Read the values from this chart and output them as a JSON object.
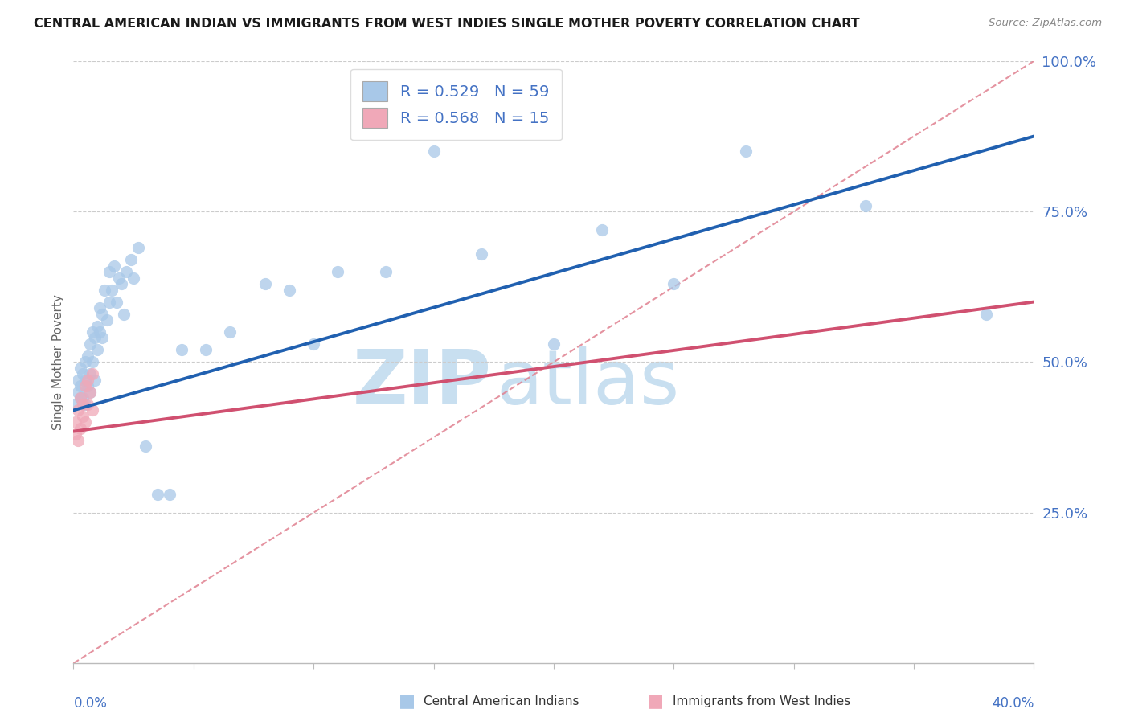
{
  "title": "CENTRAL AMERICAN INDIAN VS IMMIGRANTS FROM WEST INDIES SINGLE MOTHER POVERTY CORRELATION CHART",
  "source": "Source: ZipAtlas.com",
  "ylabel": "Single Mother Poverty",
  "legend_blue": "R = 0.529   N = 59",
  "legend_pink": "R = 0.568   N = 15",
  "legend_label_blue": "Central American Indians",
  "legend_label_pink": "Immigrants from West Indies",
  "blue_color": "#a8c8e8",
  "pink_color": "#f0a8b8",
  "trend_blue_color": "#2060b0",
  "trend_pink_color": "#d05070",
  "ref_line_color": "#e08090",
  "watermark_zip_color": "#c8dff0",
  "watermark_atlas_color": "#c8dff0",
  "text_color_blue": "#4472c4",
  "grid_color": "#cccccc",
  "blue_x": [
    0.001,
    0.002,
    0.002,
    0.003,
    0.003,
    0.003,
    0.004,
    0.004,
    0.005,
    0.005,
    0.005,
    0.006,
    0.006,
    0.007,
    0.007,
    0.007,
    0.008,
    0.008,
    0.009,
    0.009,
    0.01,
    0.01,
    0.011,
    0.011,
    0.012,
    0.012,
    0.013,
    0.014,
    0.015,
    0.015,
    0.016,
    0.017,
    0.018,
    0.019,
    0.02,
    0.021,
    0.022,
    0.024,
    0.025,
    0.027,
    0.03,
    0.035,
    0.04,
    0.045,
    0.055,
    0.065,
    0.08,
    0.09,
    0.1,
    0.11,
    0.13,
    0.15,
    0.17,
    0.2,
    0.22,
    0.25,
    0.28,
    0.33,
    0.38
  ],
  "blue_y": [
    0.43,
    0.45,
    0.47,
    0.44,
    0.46,
    0.49,
    0.44,
    0.48,
    0.43,
    0.47,
    0.5,
    0.46,
    0.51,
    0.45,
    0.48,
    0.53,
    0.5,
    0.55,
    0.47,
    0.54,
    0.52,
    0.56,
    0.55,
    0.59,
    0.54,
    0.58,
    0.62,
    0.57,
    0.6,
    0.65,
    0.62,
    0.66,
    0.6,
    0.64,
    0.63,
    0.58,
    0.65,
    0.67,
    0.64,
    0.69,
    0.36,
    0.28,
    0.28,
    0.52,
    0.52,
    0.55,
    0.63,
    0.62,
    0.53,
    0.65,
    0.65,
    0.85,
    0.68,
    0.53,
    0.72,
    0.63,
    0.85,
    0.76,
    0.58
  ],
  "pink_x": [
    0.001,
    0.001,
    0.002,
    0.002,
    0.003,
    0.003,
    0.004,
    0.004,
    0.005,
    0.005,
    0.006,
    0.006,
    0.007,
    0.008,
    0.008
  ],
  "pink_y": [
    0.38,
    0.4,
    0.37,
    0.42,
    0.39,
    0.44,
    0.41,
    0.43,
    0.4,
    0.46,
    0.43,
    0.47,
    0.45,
    0.42,
    0.48
  ],
  "blue_trend_x0": 0.0,
  "blue_trend_y0": 0.42,
  "blue_trend_x1": 0.4,
  "blue_trend_y1": 0.875,
  "pink_trend_x0": 0.0,
  "pink_trend_y0": 0.385,
  "pink_trend_x1": 0.4,
  "pink_trend_y1": 0.6,
  "xlim": [
    0.0,
    0.4
  ],
  "ylim": [
    0.0,
    1.0
  ],
  "yticks": [
    0.25,
    0.5,
    0.75,
    1.0
  ],
  "ytick_labels": [
    "25.0%",
    "50.0%",
    "75.0%",
    "100.0%"
  ]
}
